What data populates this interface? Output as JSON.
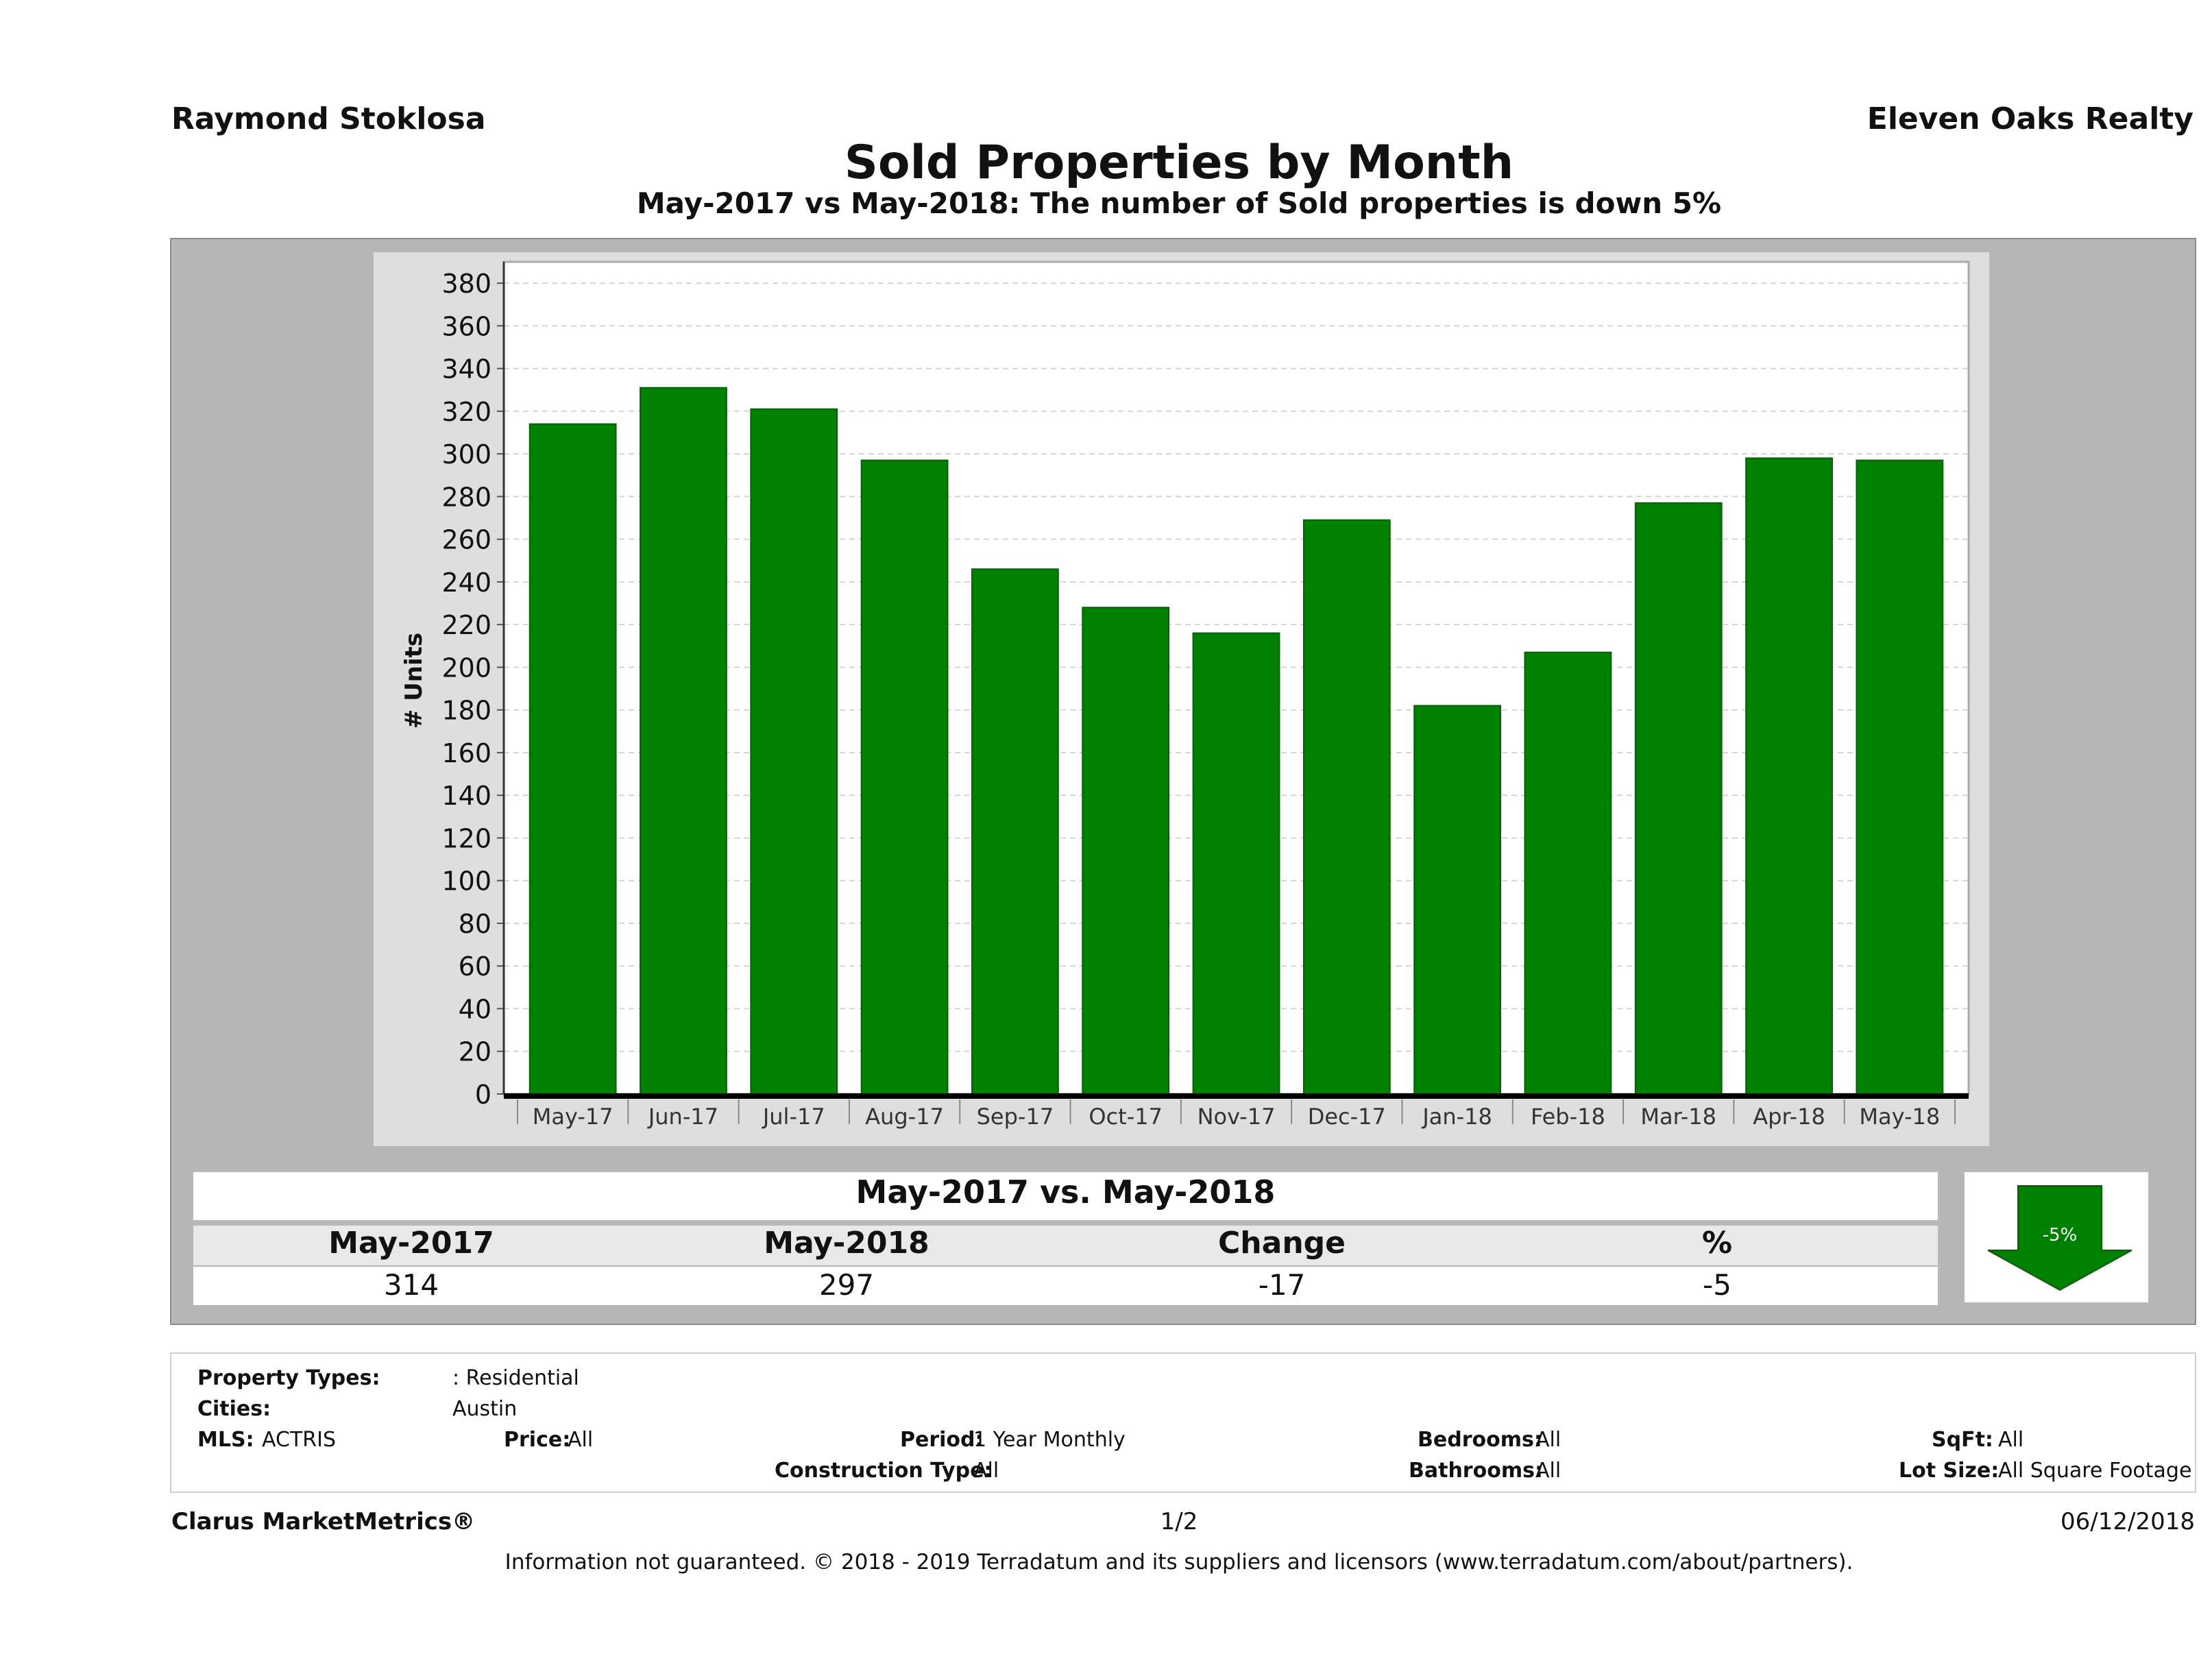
{
  "header": {
    "agent": "Raymond Stoklosa",
    "brokerage": "Eleven Oaks Realty",
    "title": "Sold Properties by Month",
    "subtitle": "May-2017 vs May-2018: The number of Sold  properties is down 5%"
  },
  "chart_data": {
    "type": "bar",
    "categories": [
      "May-17",
      "Jun-17",
      "Jul-17",
      "Aug-17",
      "Sep-17",
      "Oct-17",
      "Nov-17",
      "Dec-17",
      "Jan-18",
      "Feb-18",
      "Mar-18",
      "Apr-18",
      "May-18"
    ],
    "values": [
      314,
      331,
      321,
      297,
      246,
      228,
      216,
      269,
      182,
      207,
      277,
      298,
      297
    ],
    "ylabel": "# Units",
    "ylim": [
      0,
      390
    ],
    "yticks": [
      0,
      20,
      40,
      60,
      80,
      100,
      120,
      140,
      160,
      180,
      200,
      220,
      240,
      260,
      280,
      300,
      320,
      340,
      360,
      380
    ],
    "bar_color": "#008000",
    "grid": true,
    "legend": "none"
  },
  "comparison": {
    "title": "May-2017 vs. May-2018",
    "headers": [
      "May-2017",
      "May-2018",
      "Change",
      "%"
    ],
    "values": [
      "314",
      "297",
      "-17",
      "-5"
    ],
    "badge": "-5%",
    "arrow_icon": "down-arrow-icon",
    "arrow_color": "#008000"
  },
  "filters": {
    "property_types_label": "Property Types:",
    "property_types_value": ": Residential",
    "cities_label": "Cities:",
    "cities_value": "Austin",
    "mls_label": "MLS:",
    "mls_value": "ACTRIS",
    "price_label": "Price:",
    "price_value": "All",
    "period_label": "Period:",
    "period_value": "1 Year Monthly",
    "construction_label": "Construction Type:",
    "construction_value": "All",
    "bedrooms_label": "Bedrooms:",
    "bedrooms_value": "All",
    "bathrooms_label": "Bathrooms:",
    "bathrooms_value": "All",
    "sqft_label": "SqFt:",
    "sqft_value": "All",
    "lotsize_label": "Lot Size:",
    "lotsize_value": "All Square Footage"
  },
  "footer": {
    "brand": "Clarus MarketMetrics®",
    "page": "1/2",
    "date": "06/12/2018",
    "disclaimer": "Information not guaranteed. © 2018 - 2019 Terradatum and its suppliers and licensors (www.terradatum.com/about/partners)."
  }
}
